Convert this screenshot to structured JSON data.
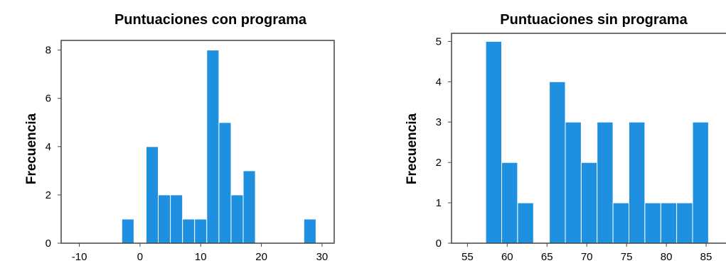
{
  "chart_data": [
    {
      "type": "histogram",
      "title": "Puntuaciones con programa",
      "ylabel": "Frecuencia",
      "xlabel": "",
      "xlim": [
        -13,
        32
      ],
      "ylim": [
        0,
        8.4
      ],
      "x_ticks": [
        "-10",
        "0",
        "10",
        "20",
        "30"
      ],
      "y_ticks": [
        "0",
        "2",
        "4",
        "6",
        "8"
      ],
      "bars": [
        {
          "x0": -3,
          "x1": -1,
          "count": 1
        },
        {
          "x0": 1,
          "x1": 3,
          "count": 4
        },
        {
          "x0": 3,
          "x1": 5,
          "count": 2
        },
        {
          "x0": 5,
          "x1": 7,
          "count": 2
        },
        {
          "x0": 7,
          "x1": 9,
          "count": 1
        },
        {
          "x0": 9,
          "x1": 11,
          "count": 1
        },
        {
          "x0": 11,
          "x1": 13,
          "count": 8
        },
        {
          "x0": 13,
          "x1": 15,
          "count": 5
        },
        {
          "x0": 15,
          "x1": 17,
          "count": 2
        },
        {
          "x0": 17,
          "x1": 19,
          "count": 3
        },
        {
          "x0": 27,
          "x1": 29,
          "count": 1
        }
      ],
      "color": "#1f8fe0"
    },
    {
      "type": "histogram",
      "title": "Puntuaciones sin programa",
      "ylabel": "Frecuencia",
      "xlabel": "",
      "xlim": [
        53,
        87.5
      ],
      "ylim": [
        0,
        5.2
      ],
      "x_ticks": [
        "55",
        "60",
        "65",
        "70",
        "75",
        "80",
        "85"
      ],
      "y_ticks": [
        "0",
        "1",
        "2",
        "3",
        "4",
        "5"
      ],
      "bars": [
        {
          "x0": 57.3,
          "x1": 59.3,
          "count": 5
        },
        {
          "x0": 59.3,
          "x1": 61.3,
          "count": 2
        },
        {
          "x0": 61.3,
          "x1": 63.3,
          "count": 1
        },
        {
          "x0": 65.3,
          "x1": 67.3,
          "count": 4
        },
        {
          "x0": 67.3,
          "x1": 69.3,
          "count": 3
        },
        {
          "x0": 69.3,
          "x1": 71.3,
          "count": 2
        },
        {
          "x0": 71.3,
          "x1": 73.3,
          "count": 3
        },
        {
          "x0": 73.3,
          "x1": 75.3,
          "count": 1
        },
        {
          "x0": 75.3,
          "x1": 77.3,
          "count": 3
        },
        {
          "x0": 77.3,
          "x1": 79.3,
          "count": 1
        },
        {
          "x0": 79.3,
          "x1": 81.3,
          "count": 1
        },
        {
          "x0": 81.3,
          "x1": 83.3,
          "count": 1
        },
        {
          "x0": 83.3,
          "x1": 85.3,
          "count": 3
        }
      ],
      "color": "#1f8fe0"
    }
  ]
}
